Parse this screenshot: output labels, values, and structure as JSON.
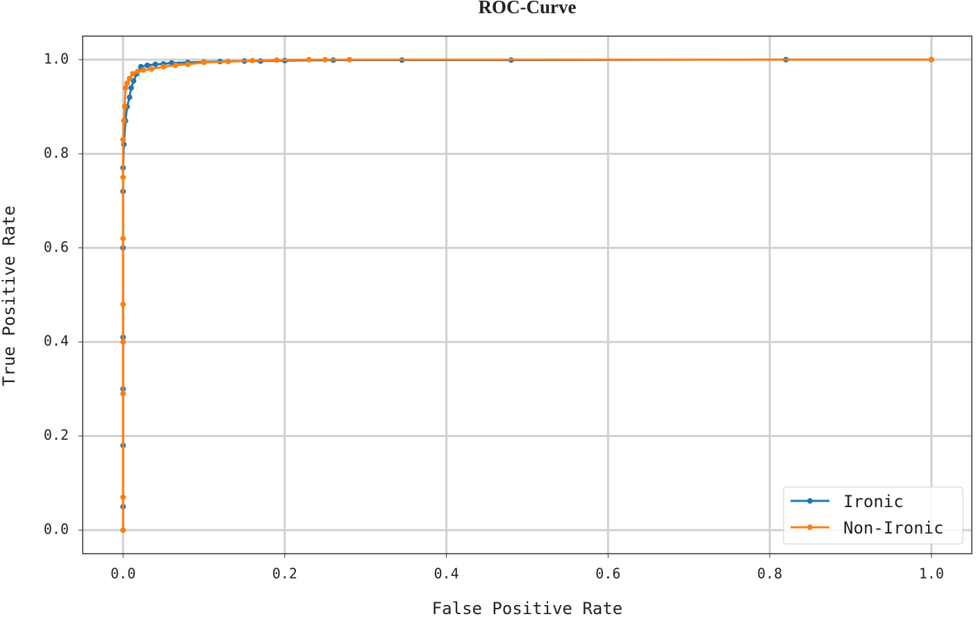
{
  "chart_data": {
    "type": "line",
    "title": "ROC-Curve",
    "x_label": "False Positive Rate",
    "y_label": "True Positive Rate",
    "xlim": [
      -0.05,
      1.05
    ],
    "ylim": [
      -0.05,
      1.05
    ],
    "xticks": [
      {
        "value": 0,
        "label": "0.0"
      },
      0.2,
      0.4,
      0.6,
      0.8,
      {
        "value": 1,
        "label": "1.0"
      }
    ],
    "yticks": [
      {
        "value": 0,
        "label": "0.0"
      },
      0.2,
      0.4,
      0.6,
      0.8,
      {
        "value": 1,
        "label": "1.0"
      }
    ],
    "grid": true,
    "legend": "lower right",
    "series": [
      {
        "name": "Ironic",
        "color": "#1f77b4",
        "x": [
          0,
          0,
          0,
          0,
          0,
          0,
          0,
          0,
          0.001,
          0.003,
          0.005,
          0.008,
          0.01,
          0.013,
          0.017,
          0.022,
          0.03,
          0.04,
          0.05,
          0.06,
          0.08,
          0.1,
          0.12,
          0.15,
          0.17,
          0.2,
          0.26,
          0.345,
          0.48,
          0.82,
          1.0
        ],
        "values": [
          0,
          0.05,
          0.18,
          0.3,
          0.41,
          0.6,
          0.72,
          0.77,
          0.82,
          0.87,
          0.9,
          0.92,
          0.94,
          0.955,
          0.97,
          0.985,
          0.988,
          0.99,
          0.991,
          0.993,
          0.994,
          0.995,
          0.996,
          0.997,
          0.997,
          0.998,
          0.999,
          0.999,
          0.999,
          1.0,
          1.0
        ]
      },
      {
        "name": "Non-Ironic",
        "color": "#ff7f0e",
        "x": [
          0,
          0,
          0,
          0,
          0,
          0,
          0,
          0,
          0.001,
          0.002,
          0.003,
          0.005,
          0.008,
          0.012,
          0.018,
          0.025,
          0.035,
          0.05,
          0.065,
          0.08,
          0.1,
          0.13,
          0.16,
          0.19,
          0.23,
          0.25,
          0.28,
          1.0
        ],
        "values": [
          0,
          0.07,
          0.29,
          0.4,
          0.48,
          0.62,
          0.75,
          0.83,
          0.87,
          0.9,
          0.94,
          0.95,
          0.96,
          0.97,
          0.975,
          0.978,
          0.98,
          0.985,
          0.988,
          0.99,
          0.994,
          0.996,
          0.998,
          0.999,
          1.0,
          1.0,
          1.0,
          1.0
        ]
      }
    ]
  }
}
